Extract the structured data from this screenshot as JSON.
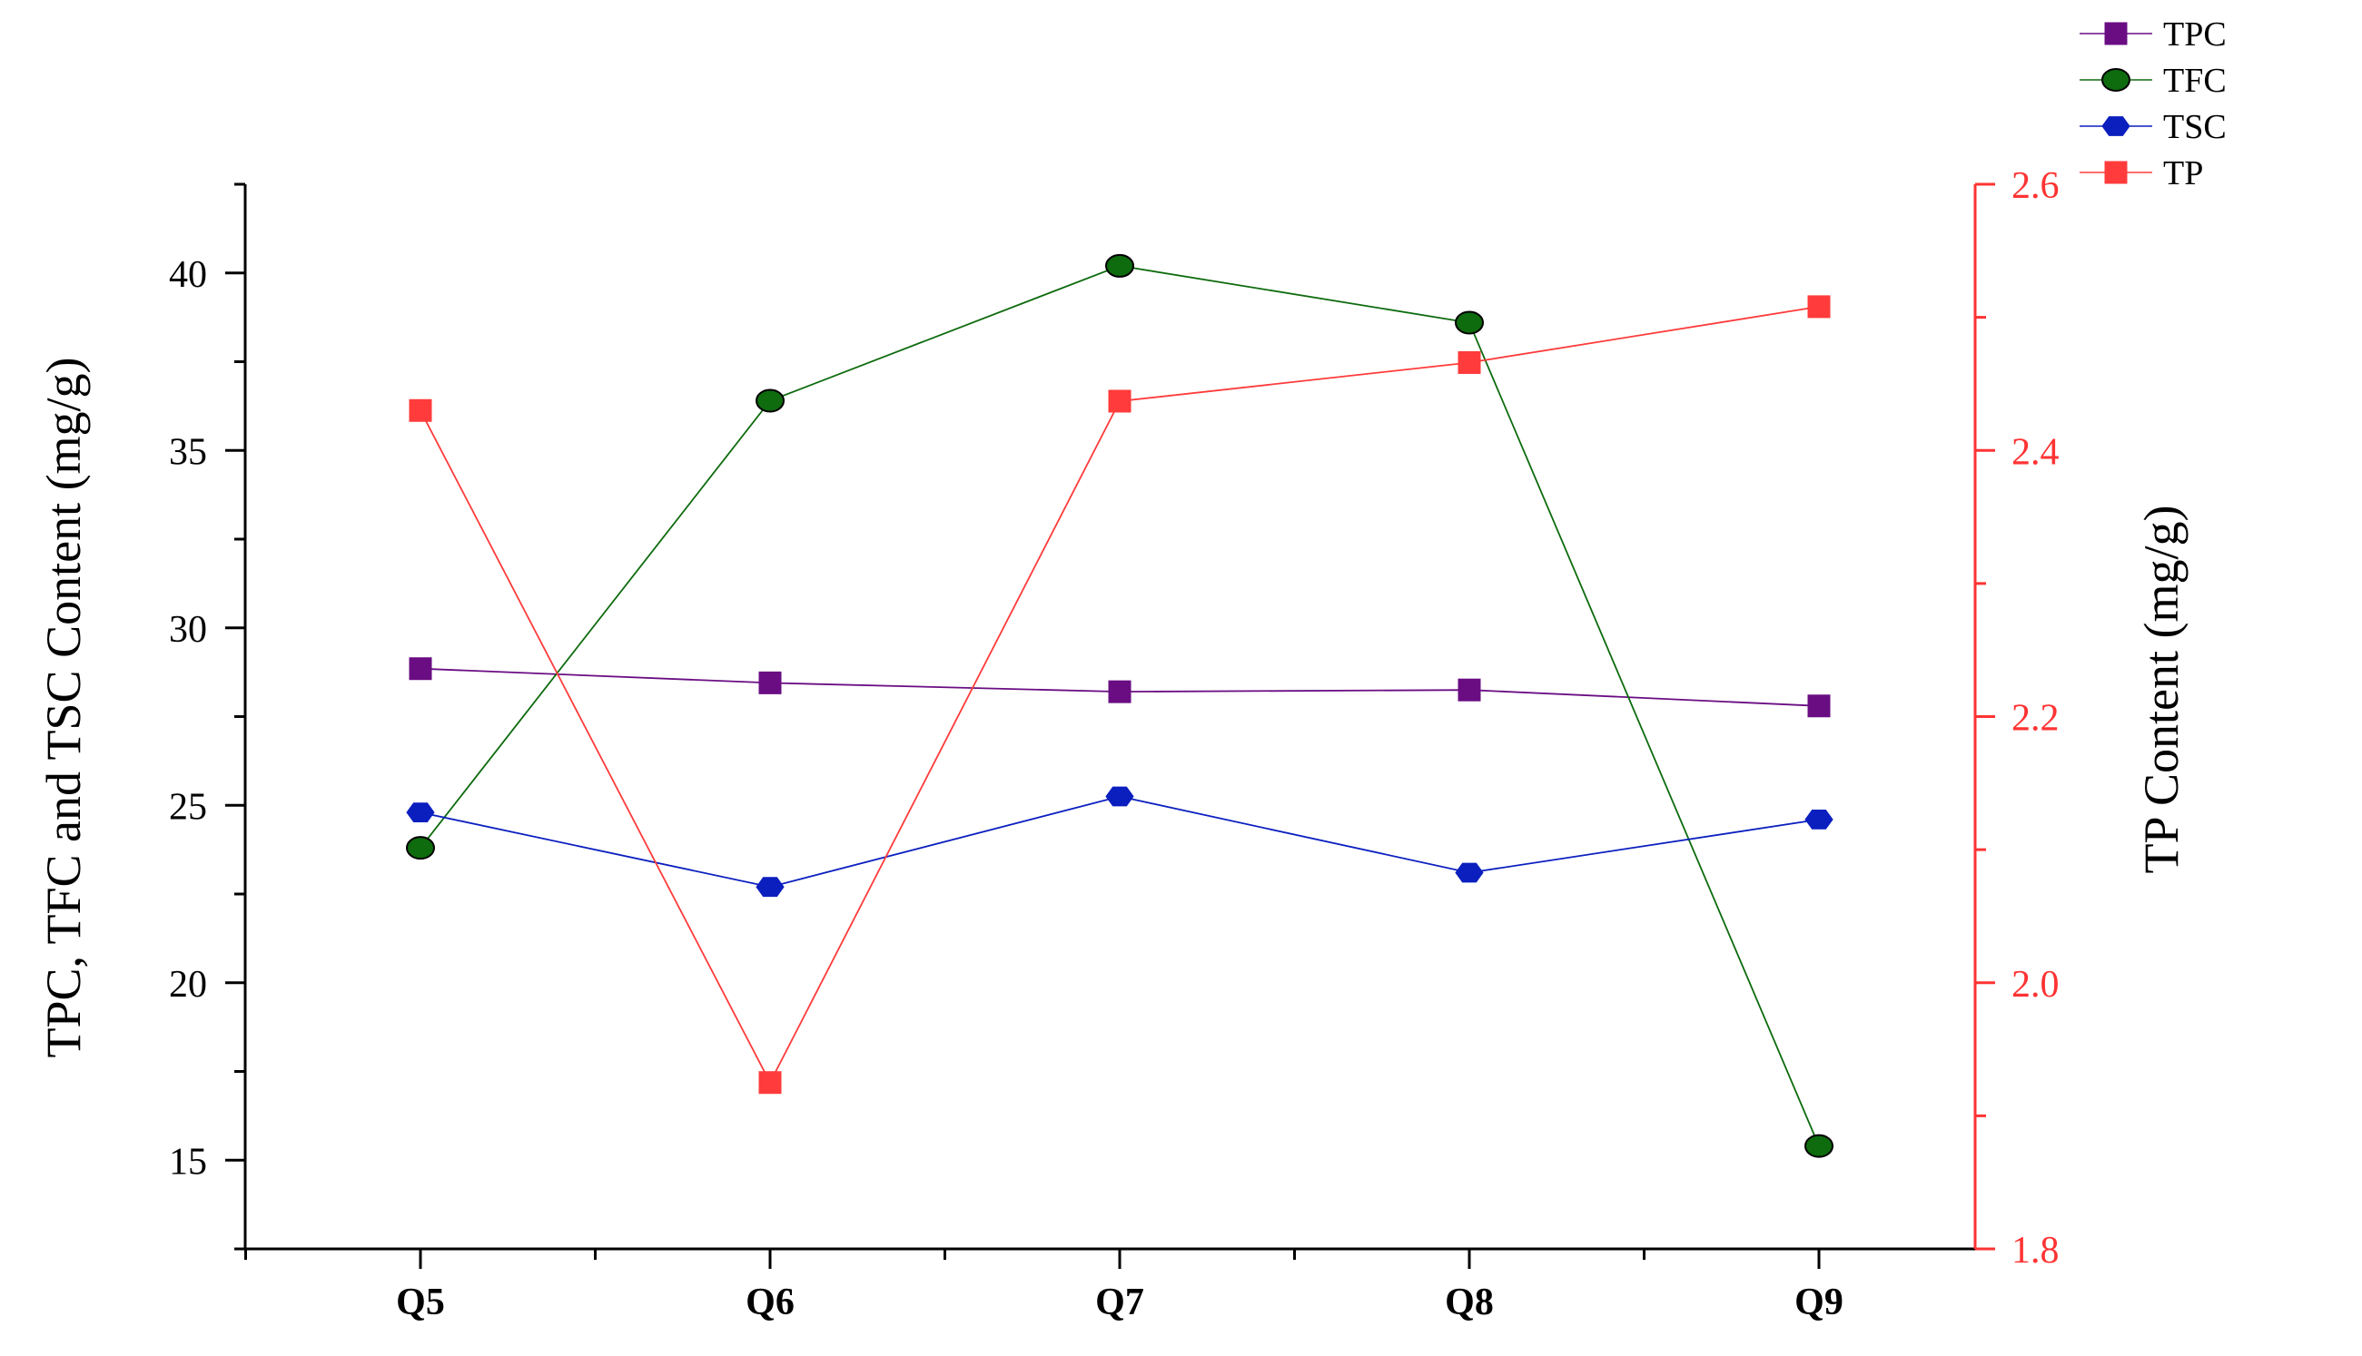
{
  "chart_data": {
    "type": "line",
    "categories": [
      "Q5",
      "Q6",
      "Q7",
      "Q8",
      "Q9"
    ],
    "y_left": {
      "label": "TPC, TFC and TSC Content (mg/g)",
      "range": [
        12.5,
        42.5
      ],
      "ticks": [
        15,
        20,
        25,
        30,
        35,
        40
      ],
      "tick_labels": [
        "15",
        "20",
        "25",
        "30",
        "35",
        "40"
      ],
      "color": "#000000"
    },
    "y_right": {
      "label": "TP Content (mg/g)",
      "range": [
        1.8,
        2.6
      ],
      "ticks": [
        1.8,
        2.0,
        2.2,
        2.4,
        2.6
      ],
      "tick_labels": [
        "1.8",
        "2.0",
        "2.2",
        "2.4",
        "2.6"
      ],
      "color": "#ff3333"
    },
    "series": [
      {
        "name": "TPC",
        "axis": "left",
        "values": [
          28.85,
          28.45,
          28.2,
          28.25,
          27.8
        ],
        "color": "#6a0d83",
        "marker": "square"
      },
      {
        "name": "TFC",
        "axis": "left",
        "values": [
          23.8,
          36.4,
          40.2,
          38.6,
          15.4
        ],
        "color": "#0e6b0e",
        "marker": "circle"
      },
      {
        "name": "TSC",
        "axis": "left",
        "values": [
          24.8,
          22.7,
          25.25,
          23.1,
          24.6
        ],
        "color": "#0b1fbf",
        "marker": "hexagon"
      },
      {
        "name": "TP",
        "axis": "right",
        "values": [
          2.43,
          1.925,
          2.437,
          2.466,
          2.508
        ],
        "color": "#ff3b3b",
        "marker": "square"
      }
    ],
    "legend": {
      "position": "top-right"
    },
    "grid": false
  }
}
